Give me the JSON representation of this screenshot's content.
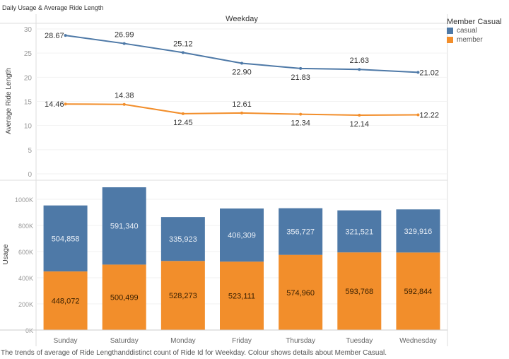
{
  "title": "Daily Usage & Average Ride Length",
  "caption": "The trends of average of Ride Lengthanddistinct count of Ride Id for Weekday. Colour shows details about Member Casual.",
  "legend": {
    "title": "Member Casual",
    "items": [
      {
        "label": "casual",
        "color": "#4e79a7"
      },
      {
        "label": "member",
        "color": "#f28e2b"
      }
    ]
  },
  "chart_data": [
    {
      "type": "line",
      "column_header": "Weekday",
      "ylabel": "Average Ride Length",
      "ylim": [
        0,
        30
      ],
      "yticks": [
        "0",
        "5",
        "10",
        "15",
        "20",
        "25",
        "30"
      ],
      "categories": [
        "Sunday",
        "Saturday",
        "Monday",
        "Friday",
        "Thursday",
        "Tuesday",
        "Wednesday"
      ],
      "series": [
        {
          "name": "casual",
          "color": "#4e79a7",
          "values": [
            28.67,
            26.99,
            25.12,
            22.9,
            21.83,
            21.63,
            21.02
          ],
          "labels": [
            "28.67",
            "26.99",
            "25.12",
            "22.90",
            "21.83",
            "21.63",
            "21.02"
          ]
        },
        {
          "name": "member",
          "color": "#f28e2b",
          "values": [
            14.46,
            14.38,
            12.45,
            12.61,
            12.34,
            12.14,
            12.22
          ],
          "labels": [
            "14.46",
            "14.38",
            "12.45",
            "12.61",
            "12.34",
            "12.14",
            "12.22"
          ]
        }
      ]
    },
    {
      "type": "bar",
      "stacked": true,
      "ylabel": "Usage",
      "ylim": [
        0,
        1100000
      ],
      "yticks": [
        {
          "v": 0,
          "label": "0K"
        },
        {
          "v": 200000,
          "label": "200K"
        },
        {
          "v": 400000,
          "label": "400K"
        },
        {
          "v": 600000,
          "label": "600K"
        },
        {
          "v": 800000,
          "label": "800K"
        },
        {
          "v": 1000000,
          "label": "1000K"
        }
      ],
      "categories": [
        "Sunday",
        "Saturday",
        "Monday",
        "Friday",
        "Thursday",
        "Tuesday",
        "Wednesday"
      ],
      "series": [
        {
          "name": "member",
          "color": "#f28e2b",
          "values": [
            448072,
            500499,
            528273,
            523111,
            574960,
            593768,
            592844
          ],
          "labels": [
            "448,072",
            "500,499",
            "528,273",
            "523,111",
            "574,960",
            "593,768",
            "592,844"
          ]
        },
        {
          "name": "casual",
          "color": "#4e79a7",
          "values": [
            504858,
            591340,
            335923,
            406309,
            356727,
            321521,
            329916
          ],
          "labels": [
            "504,858",
            "591,340",
            "335,923",
            "406,309",
            "356,727",
            "321,521",
            "329,916"
          ]
        }
      ]
    }
  ]
}
